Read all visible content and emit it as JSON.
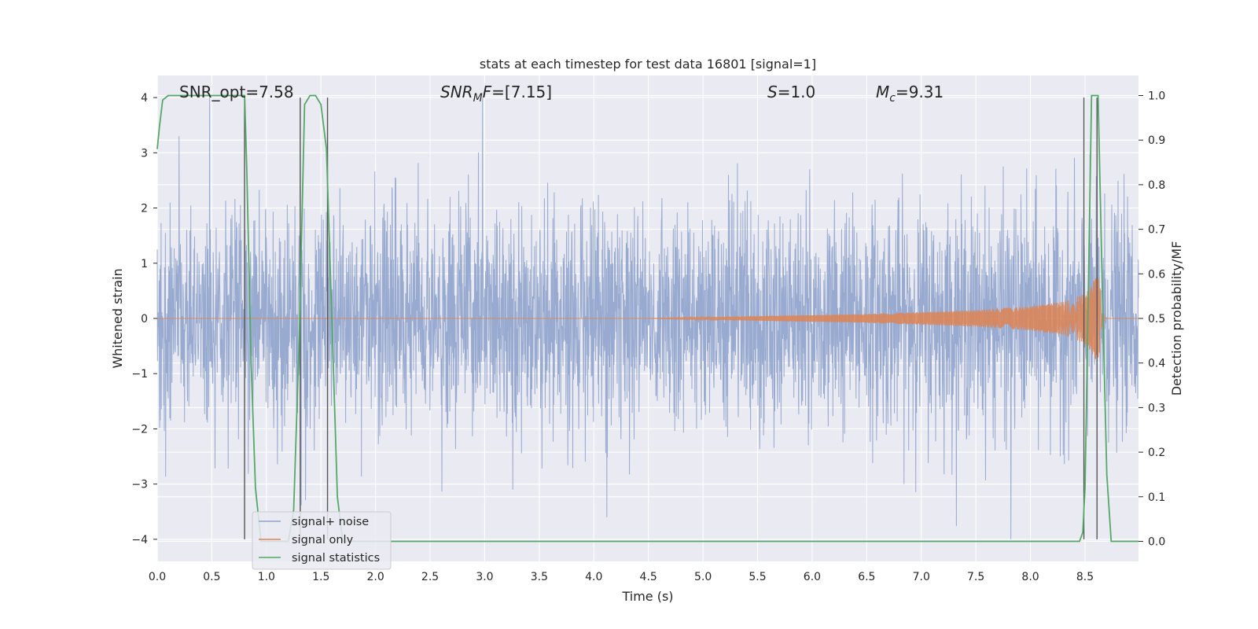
{
  "chart_data": {
    "type": "line",
    "title": "stats at each timestep for test data 16801 [signal=1]",
    "xlabel": "Time (s)",
    "ylabel": "Whitened strain",
    "y2label": "Detection probability/MF",
    "xlim": [
      0.0,
      8.99
    ],
    "ylim": [
      -4.4,
      4.4
    ],
    "y2lim": [
      -0.045,
      1.045
    ],
    "x_ticks": [
      "0.0",
      "0.5",
      "1.0",
      "1.5",
      "2.0",
      "2.5",
      "3.0",
      "3.5",
      "4.0",
      "4.5",
      "5.0",
      "5.5",
      "6.0",
      "6.5",
      "7.0",
      "7.5",
      "8.0",
      "8.5"
    ],
    "y_ticks": [
      "4",
      "3",
      "2",
      "1",
      "0",
      "−1",
      "−2",
      "−3",
      "−4"
    ],
    "y2_ticks": [
      "1.0",
      "0.9",
      "0.8",
      "0.7",
      "0.6",
      "0.5",
      "0.4",
      "0.3",
      "0.2",
      "0.1",
      "0.0"
    ],
    "grid": true,
    "legend_placement": "lower-left",
    "annotations": {
      "snr_opt": "SNR_opt=7.58",
      "snr_mf": "SNR_MF=[7.15]",
      "s": "S=1.0",
      "mc": "M_c=9.31"
    },
    "series": [
      {
        "name": "signal+ noise",
        "color": "#8fa3cc",
        "description_values": "whitened noise, roughly Gaussian, amplitude mostly within ±3 with spikes to about ±4 across 0 to 8.99 s",
        "typical_amplitude": 1.0,
        "peaks": [
          [
            0.48,
            4.0
          ],
          [
            2.98,
            4.0
          ],
          [
            0.2,
            3.3
          ],
          [
            7.82,
            -4.0
          ],
          [
            4.12,
            -3.6
          ]
        ]
      },
      {
        "name": "signal only",
        "color": "#dd8452",
        "envelope_x": [
          4.5,
          5.5,
          6.5,
          7.5,
          8.0,
          8.3,
          8.5,
          8.62,
          8.68
        ],
        "envelope_amp": [
          0.0,
          0.04,
          0.08,
          0.15,
          0.22,
          0.3,
          0.45,
          0.8,
          0.0
        ]
      },
      {
        "name": "signal statistics",
        "color": "#55a868",
        "x": [
          0.0,
          0.02,
          0.05,
          0.1,
          0.75,
          0.8,
          0.82,
          0.86,
          0.9,
          0.95,
          1.2,
          1.25,
          1.3,
          1.35,
          1.4,
          1.45,
          1.5,
          1.55,
          1.6,
          1.65,
          1.7,
          2.0,
          3.0,
          4.0,
          5.0,
          6.0,
          7.0,
          8.0,
          8.45,
          8.48,
          8.5,
          8.53,
          8.56,
          8.62,
          8.66,
          8.7,
          8.74,
          8.8,
          8.99
        ],
        "values": [
          0.88,
          0.93,
          0.99,
          1.0,
          1.0,
          1.0,
          0.84,
          0.4,
          0.12,
          0.0,
          0.0,
          0.07,
          0.45,
          0.98,
          1.0,
          1.0,
          0.98,
          0.88,
          0.5,
          0.1,
          0.0,
          0.0,
          0.0,
          0.0,
          0.0,
          0.0,
          0.0,
          0.0,
          0.0,
          0.02,
          0.12,
          0.55,
          1.0,
          1.0,
          0.55,
          0.15,
          0.0,
          0.0,
          0.0
        ],
        "axis": "right"
      }
    ],
    "vertical_markers_x": [
      0.8,
      1.31,
      1.56,
      8.49,
      8.61
    ]
  }
}
